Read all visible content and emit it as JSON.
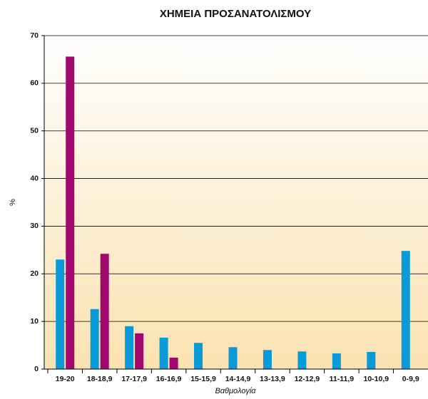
{
  "chart_data": {
    "type": "bar",
    "title": "ΧΗΜΕΙΑ ΠΡΟΣΑΝΑΤΟΛΙΣΜΟΥ",
    "x_label": "Βαθμολογία",
    "y_label": "%",
    "categories": [
      "19-20",
      "18-18,9",
      "17-17,9",
      "16-16,9",
      "15-15,9",
      "14-14,9",
      "13-13,9",
      "12-12,9",
      "11-11,9",
      "10-10,9",
      "0-9,9"
    ],
    "series": [
      {
        "color": "#0a9ad8",
        "values": [
          23.0,
          12.6,
          9.0,
          6.6,
          5.5,
          4.6,
          4.0,
          3.7,
          3.3,
          3.6,
          24.8
        ]
      },
      {
        "color": "#a0086e",
        "values": [
          65.6,
          24.2,
          7.5,
          2.4,
          0,
          0,
          0,
          0,
          0,
          0,
          0
        ]
      }
    ],
    "ylim": [
      0,
      70
    ],
    "yticks": [
      0,
      10,
      20,
      30,
      40,
      50,
      60,
      70
    ],
    "grid": true
  }
}
